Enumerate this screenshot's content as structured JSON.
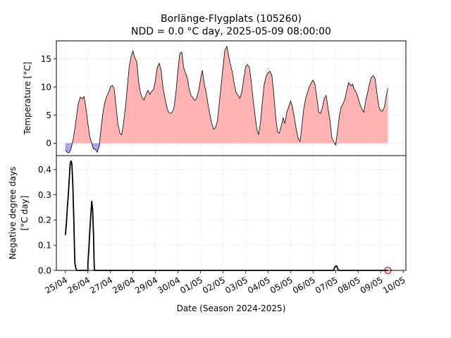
{
  "title_line1": "Borlänge-Flygplats (105260)",
  "title_line2": "NDD = 0.0 °C day, 2025-05-09 08:00:00",
  "colors": {
    "positive_fill": "#ff9999",
    "negative_fill": "#8888ee",
    "line": "#000000",
    "marker": "#ff0000"
  },
  "chart_data": [
    {
      "type": "area",
      "ylabel": "Temperature [°C]",
      "ylim": [
        -2.2,
        18.2
      ],
      "yticks": [
        0,
        5,
        10,
        15
      ],
      "grid": true,
      "x_unit": "days since 2025-04-25 00:00",
      "series": [
        {
          "points": [
            [
              0.0,
              -1.2
            ],
            [
              0.08,
              -1.6
            ],
            [
              0.17,
              -1.7
            ],
            [
              0.25,
              -1.0
            ],
            [
              0.33,
              0.4
            ],
            [
              0.42,
              2.5
            ],
            [
              0.5,
              5.0
            ],
            [
              0.58,
              7.2
            ],
            [
              0.67,
              8.2
            ],
            [
              0.75,
              7.9
            ],
            [
              0.83,
              8.3
            ],
            [
              0.92,
              6.0
            ],
            [
              1.0,
              3.5
            ],
            [
              1.08,
              1.2
            ],
            [
              1.17,
              0.0
            ],
            [
              1.25,
              -1.0
            ],
            [
              1.33,
              -1.1
            ],
            [
              1.42,
              -1.6
            ],
            [
              1.5,
              -0.5
            ],
            [
              1.58,
              2.5
            ],
            [
              1.67,
              5.5
            ],
            [
              1.75,
              7.2
            ],
            [
              1.83,
              8.3
            ],
            [
              1.92,
              9.0
            ],
            [
              2.0,
              10.0
            ],
            [
              2.08,
              10.3
            ],
            [
              2.17,
              9.6
            ],
            [
              2.25,
              6.5
            ],
            [
              2.33,
              3.5
            ],
            [
              2.42,
              1.8
            ],
            [
              2.5,
              1.5
            ],
            [
              2.58,
              3.5
            ],
            [
              2.67,
              6.5
            ],
            [
              2.75,
              10.0
            ],
            [
              2.83,
              13.5
            ],
            [
              2.92,
              15.5
            ],
            [
              3.0,
              16.4
            ],
            [
              3.08,
              15.2
            ],
            [
              3.17,
              14.5
            ],
            [
              3.25,
              11.0
            ],
            [
              3.33,
              9.0
            ],
            [
              3.42,
              8.0
            ],
            [
              3.5,
              7.7
            ],
            [
              3.58,
              8.7
            ],
            [
              3.67,
              9.4
            ],
            [
              3.75,
              8.7
            ],
            [
              3.83,
              9.2
            ],
            [
              3.92,
              9.6
            ],
            [
              4.0,
              11.2
            ],
            [
              4.08,
              13.5
            ],
            [
              4.17,
              14.2
            ],
            [
              4.25,
              13.0
            ],
            [
              4.33,
              10.0
            ],
            [
              4.42,
              8.0
            ],
            [
              4.5,
              6.5
            ],
            [
              4.58,
              5.5
            ],
            [
              4.67,
              5.3
            ],
            [
              4.75,
              5.5
            ],
            [
              4.83,
              6.5
            ],
            [
              4.92,
              9.5
            ],
            [
              5.0,
              13.0
            ],
            [
              5.08,
              16.0
            ],
            [
              5.17,
              16.2
            ],
            [
              5.25,
              13.5
            ],
            [
              5.33,
              12.5
            ],
            [
              5.42,
              11.5
            ],
            [
              5.5,
              9.5
            ],
            [
              5.58,
              8.5
            ],
            [
              5.67,
              8.0
            ],
            [
              5.75,
              7.6
            ],
            [
              5.83,
              8.0
            ],
            [
              5.92,
              9.5
            ],
            [
              6.0,
              11.3
            ],
            [
              6.08,
              13.0
            ],
            [
              6.17,
              10.5
            ],
            [
              6.25,
              9.0
            ],
            [
              6.33,
              7.0
            ],
            [
              6.42,
              5.0
            ],
            [
              6.5,
              3.5
            ],
            [
              6.58,
              2.5
            ],
            [
              6.67,
              2.8
            ],
            [
              6.75,
              4.0
            ],
            [
              6.83,
              7.0
            ],
            [
              6.92,
              10.5
            ],
            [
              7.0,
              13.5
            ],
            [
              7.08,
              16.5
            ],
            [
              7.17,
              17.2
            ],
            [
              7.25,
              15.5
            ],
            [
              7.33,
              14.0
            ],
            [
              7.42,
              12.5
            ],
            [
              7.5,
              10.5
            ],
            [
              7.58,
              9.0
            ],
            [
              7.67,
              8.5
            ],
            [
              7.75,
              8.0
            ],
            [
              7.83,
              9.0
            ],
            [
              7.92,
              11.5
            ],
            [
              8.0,
              13.5
            ],
            [
              8.08,
              14.0
            ],
            [
              8.17,
              13.5
            ],
            [
              8.25,
              11.0
            ],
            [
              8.33,
              8.0
            ],
            [
              8.42,
              5.0
            ],
            [
              8.5,
              2.5
            ],
            [
              8.58,
              1.5
            ],
            [
              8.67,
              4.0
            ],
            [
              8.75,
              7.5
            ],
            [
              8.83,
              10.5
            ],
            [
              8.92,
              12.0
            ],
            [
              9.0,
              12.5
            ],
            [
              9.08,
              12.8
            ],
            [
              9.17,
              12.0
            ],
            [
              9.25,
              9.0
            ],
            [
              9.33,
              5.0
            ],
            [
              9.42,
              2.0
            ],
            [
              9.5,
              1.8
            ],
            [
              9.58,
              3.0
            ],
            [
              9.67,
              4.5
            ],
            [
              9.75,
              3.5
            ],
            [
              9.83,
              5.5
            ],
            [
              9.92,
              6.5
            ],
            [
              10.0,
              7.5
            ],
            [
              10.08,
              6.5
            ],
            [
              10.17,
              4.5
            ],
            [
              10.25,
              2.5
            ],
            [
              10.33,
              1.0
            ],
            [
              10.42,
              0.3
            ],
            [
              10.5,
              3.0
            ],
            [
              10.58,
              6.0
            ],
            [
              10.67,
              8.0
            ],
            [
              10.75,
              9.0
            ],
            [
              10.83,
              10.0
            ],
            [
              10.92,
              10.8
            ],
            [
              11.0,
              11.2
            ],
            [
              11.08,
              10.5
            ],
            [
              11.17,
              8.0
            ],
            [
              11.25,
              5.5
            ],
            [
              11.33,
              5.3
            ],
            [
              11.42,
              6.5
            ],
            [
              11.5,
              8.0
            ],
            [
              11.58,
              8.5
            ],
            [
              11.67,
              6.0
            ],
            [
              11.75,
              4.0
            ],
            [
              11.83,
              1.0
            ],
            [
              11.92,
              0.2
            ],
            [
              12.0,
              -0.3
            ],
            [
              12.08,
              2.0
            ],
            [
              12.17,
              5.0
            ],
            [
              12.25,
              6.5
            ],
            [
              12.33,
              7.0
            ],
            [
              12.42,
              8.0
            ],
            [
              12.5,
              9.5
            ],
            [
              12.58,
              10.8
            ],
            [
              12.67,
              10.2
            ],
            [
              12.75,
              10.5
            ],
            [
              12.83,
              9.5
            ],
            [
              12.92,
              9.0
            ],
            [
              13.0,
              8.0
            ],
            [
              13.08,
              7.0
            ],
            [
              13.17,
              6.0
            ],
            [
              13.25,
              5.5
            ],
            [
              13.33,
              7.5
            ],
            [
              13.42,
              9.0
            ],
            [
              13.5,
              10.5
            ],
            [
              13.58,
              11.7
            ],
            [
              13.67,
              12.0
            ],
            [
              13.75,
              11.5
            ],
            [
              13.83,
              9.0
            ],
            [
              13.92,
              6.5
            ],
            [
              14.0,
              5.8
            ],
            [
              14.08,
              5.7
            ],
            [
              14.17,
              6.5
            ],
            [
              14.25,
              8.5
            ],
            [
              14.32,
              9.8
            ]
          ]
        }
      ]
    },
    {
      "type": "line",
      "ylabel": "Negative degree days\n[°C day]",
      "ylim": [
        0,
        0.455
      ],
      "yticks": [
        0.0,
        0.1,
        0.2,
        0.3,
        0.4
      ],
      "yticklabels": [
        "0.0",
        "0.1",
        "0.2",
        "0.3",
        "0.4"
      ],
      "grid": true,
      "xlabel": "Date (Season 2024-2025)",
      "x_unit": "days since 2025-04-25 00:00",
      "xticks": [
        0,
        1,
        2,
        3,
        4,
        5,
        6,
        7,
        8,
        9,
        10,
        11,
        12,
        13,
        14,
        15
      ],
      "xticklabels": [
        "25/04",
        "26/04",
        "27/04",
        "28/04",
        "29/04",
        "30/04",
        "01/05",
        "02/05",
        "03/05",
        "04/05",
        "05/05",
        "06/05",
        "07/05",
        "08/05",
        "09/05",
        "10/05"
      ],
      "series": [
        {
          "points": [
            [
              0.0,
              0.14
            ],
            [
              0.04,
              0.18
            ],
            [
              0.08,
              0.24
            ],
            [
              0.13,
              0.3
            ],
            [
              0.17,
              0.36
            ],
            [
              0.21,
              0.42
            ],
            [
              0.25,
              0.435
            ],
            [
              0.29,
              0.42
            ],
            [
              0.33,
              0.34
            ],
            [
              0.375,
              0.2
            ],
            [
              0.4,
              0.1
            ],
            [
              0.42,
              0.03
            ],
            [
              0.46,
              0.01
            ],
            [
              0.5,
              0.0
            ],
            [
              0.6,
              0.0
            ],
            [
              1.0,
              0.0
            ],
            [
              1.0,
              0.03
            ],
            [
              1.04,
              0.08
            ],
            [
              1.08,
              0.15
            ],
            [
              1.13,
              0.22
            ],
            [
              1.17,
              0.275
            ],
            [
              1.21,
              0.24
            ],
            [
              1.25,
              0.14
            ],
            [
              1.27,
              0.05
            ],
            [
              1.29,
              0.0
            ],
            [
              11.9,
              0.0
            ],
            [
              11.95,
              0.01
            ],
            [
              12.0,
              0.017
            ],
            [
              12.05,
              0.017
            ],
            [
              12.1,
              0.005
            ],
            [
              12.15,
              0.0
            ],
            [
              14.32,
              0.0
            ]
          ]
        }
      ],
      "current_marker": [
        14.32,
        0.0
      ]
    }
  ]
}
